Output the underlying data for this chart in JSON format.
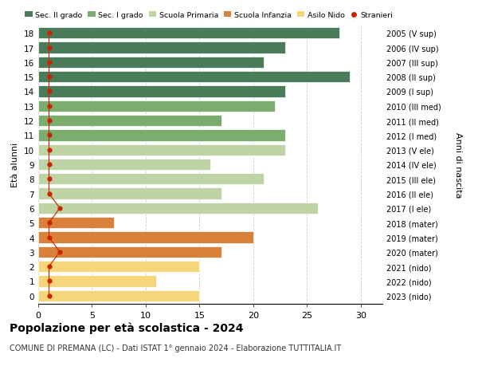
{
  "ages": [
    18,
    17,
    16,
    15,
    14,
    13,
    12,
    11,
    10,
    9,
    8,
    7,
    6,
    5,
    4,
    3,
    2,
    1,
    0
  ],
  "values": [
    28,
    23,
    21,
    29,
    23,
    22,
    17,
    23,
    23,
    16,
    21,
    17,
    26,
    7,
    20,
    17,
    15,
    11,
    15
  ],
  "stranieri_x": [
    1,
    1,
    1,
    1,
    1,
    1,
    1,
    1,
    1,
    1,
    1,
    1,
    2,
    1,
    1,
    2,
    1,
    1,
    1
  ],
  "bar_colors": [
    "#4a7c59",
    "#4a7c59",
    "#4a7c59",
    "#4a7c59",
    "#4a7c59",
    "#7aad6e",
    "#7aad6e",
    "#7aad6e",
    "#bed4a4",
    "#bed4a4",
    "#bed4a4",
    "#bed4a4",
    "#bed4a4",
    "#d9813a",
    "#d9813a",
    "#d9813a",
    "#f5d67a",
    "#f5d67a",
    "#f5d67a"
  ],
  "right_labels": [
    "2005 (V sup)",
    "2006 (IV sup)",
    "2007 (III sup)",
    "2008 (II sup)",
    "2009 (I sup)",
    "2010 (III med)",
    "2011 (II med)",
    "2012 (I med)",
    "2013 (V ele)",
    "2014 (IV ele)",
    "2015 (III ele)",
    "2016 (II ele)",
    "2017 (I ele)",
    "2018 (mater)",
    "2019 (mater)",
    "2020 (mater)",
    "2021 (nido)",
    "2022 (nido)",
    "2023 (nido)"
  ],
  "legend_labels": [
    "Sec. II grado",
    "Sec. I grado",
    "Scuola Primaria",
    "Scuola Infanzia",
    "Asilo Nido",
    "Stranieri"
  ],
  "legend_colors": [
    "#4a7c59",
    "#7aad6e",
    "#bed4a4",
    "#d9813a",
    "#f5d67a",
    "#cc2200"
  ],
  "ylabel_left": "Età alunni",
  "ylabel_right": "Anni di nascita",
  "title": "Popolazione per età scolastica - 2024",
  "subtitle": "COMUNE DI PREMANA (LC) - Dati ISTAT 1° gennaio 2024 - Elaborazione TUTTITALIA.IT",
  "xlim": [
    0,
    32
  ],
  "xticks": [
    0,
    5,
    10,
    15,
    20,
    25,
    30
  ],
  "background_color": "#ffffff",
  "grid_color": "#cccccc",
  "stranieri_color": "#cc2200",
  "bar_height": 0.78
}
